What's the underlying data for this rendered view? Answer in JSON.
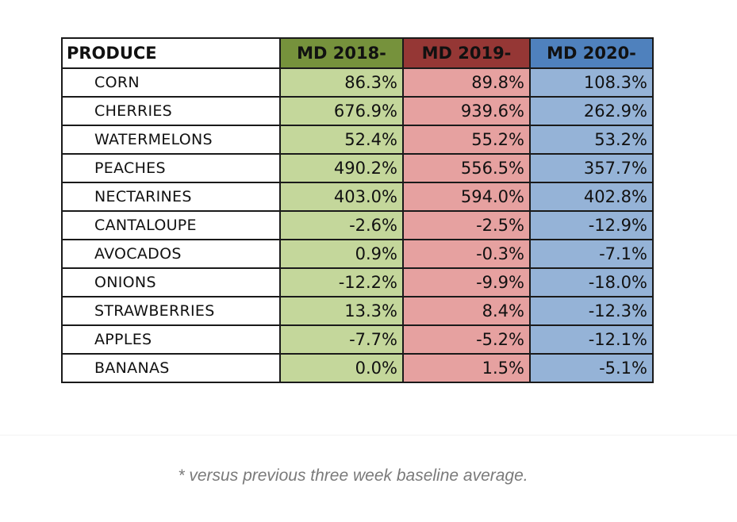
{
  "chart_data": {
    "type": "table",
    "title": "",
    "header": {
      "label": "PRODUCE",
      "columns": [
        {
          "label": "MD 2018-",
          "header_color": "#76923c",
          "cell_color": "#c4d79b"
        },
        {
          "label": "MD 2019-",
          "header_color": "#953735",
          "cell_color": "#e6a1a0"
        },
        {
          "label": "MD 2020-",
          "header_color": "#4f81bd",
          "cell_color": "#95b3d7"
        }
      ]
    },
    "rows": [
      {
        "name": "CORN",
        "values": [
          "86.3%",
          "89.8%",
          "108.3%"
        ]
      },
      {
        "name": "CHERRIES",
        "values": [
          "676.9%",
          "939.6%",
          "262.9%"
        ]
      },
      {
        "name": "WATERMELONS",
        "values": [
          "52.4%",
          "55.2%",
          "53.2%"
        ]
      },
      {
        "name": "PEACHES",
        "values": [
          "490.2%",
          "556.5%",
          "357.7%"
        ]
      },
      {
        "name": "NECTARINES",
        "values": [
          "403.0%",
          "594.0%",
          "402.8%"
        ]
      },
      {
        "name": "CANTALOUPE",
        "values": [
          "-2.6%",
          "-2.5%",
          "-12.9%"
        ]
      },
      {
        "name": "AVOCADOS",
        "values": [
          "0.9%",
          "-0.3%",
          "-7.1%"
        ]
      },
      {
        "name": "ONIONS",
        "values": [
          "-12.2%",
          "-9.9%",
          "-18.0%"
        ]
      },
      {
        "name": "STRAWBERRIES",
        "values": [
          "13.3%",
          "8.4%",
          "-12.3%"
        ]
      },
      {
        "name": "APPLES",
        "values": [
          "-7.7%",
          "-5.2%",
          "-12.1%"
        ]
      },
      {
        "name": "BANANAS",
        "values": [
          "0.0%",
          "1.5%",
          "-5.1%"
        ]
      }
    ],
    "footnote": "* versus previous three week baseline average."
  }
}
